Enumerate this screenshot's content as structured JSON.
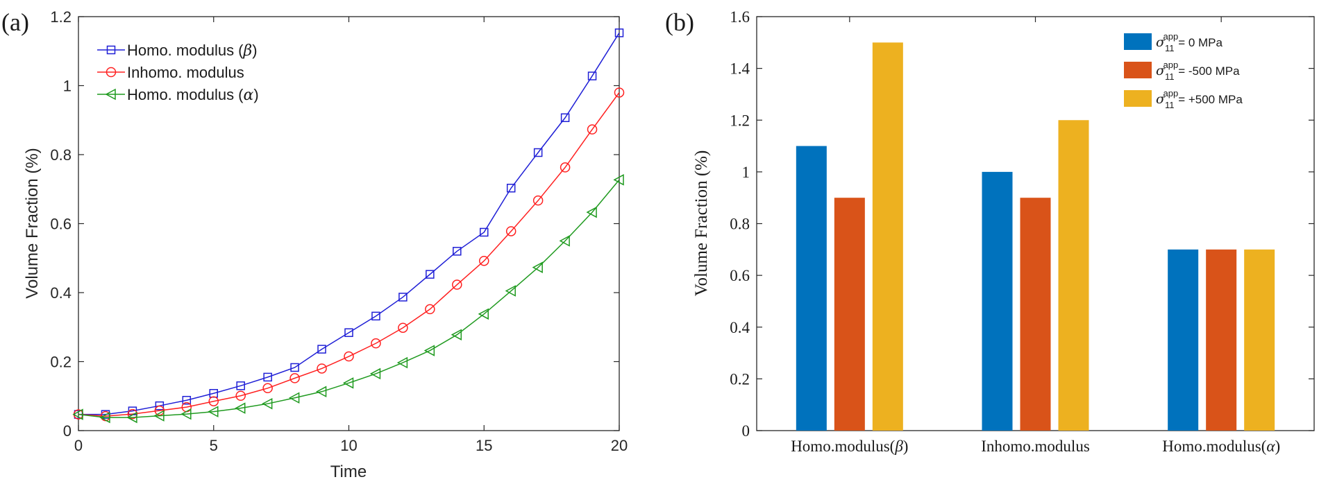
{
  "chart_data": [
    {
      "panel_label": "(a)",
      "type": "line",
      "title": "",
      "xlabel": "Time",
      "ylabel": "Volume Fraction (%)",
      "xlim": [
        0,
        20
      ],
      "ylim": [
        0,
        1.2
      ],
      "xticks": [
        0,
        5,
        10,
        15,
        20
      ],
      "xtick_labels": [
        "0",
        "5",
        "10",
        "15",
        "20"
      ],
      "yticks": [
        0,
        0.2,
        0.4,
        0.6,
        0.8,
        1.0,
        1.2
      ],
      "ytick_labels": [
        "0",
        "0.2",
        "0.4",
        "0.6",
        "0.8",
        "1",
        "1.2"
      ],
      "legend_position": "top-left",
      "x": [
        0,
        1,
        2,
        3,
        4,
        5,
        6,
        7,
        8,
        9,
        10,
        11,
        12,
        13,
        14,
        15,
        16,
        17,
        18,
        19,
        20
      ],
      "series": [
        {
          "name": "Homo. modulus (β)",
          "legend_prefix": "Homo. modulus (",
          "legend_symbol": "β",
          "legend_suffix": ")",
          "color": "#1f1fd6",
          "marker": "square",
          "values": [
            0.047,
            0.047,
            0.057,
            0.072,
            0.088,
            0.108,
            0.13,
            0.155,
            0.183,
            0.236,
            0.284,
            0.332,
            0.387,
            0.453,
            0.52,
            0.575,
            0.703,
            0.806,
            0.907,
            1.028,
            1.153
          ]
        },
        {
          "name": "Inhomo. modulus",
          "legend_prefix": "Inhomo. modulus",
          "legend_symbol": "",
          "legend_suffix": "",
          "color": "#ff2020",
          "marker": "circle",
          "values": [
            0.047,
            0.042,
            0.048,
            0.058,
            0.068,
            0.085,
            0.101,
            0.123,
            0.152,
            0.18,
            0.215,
            0.253,
            0.298,
            0.352,
            0.423,
            0.492,
            0.578,
            0.667,
            0.763,
            0.873,
            0.98
          ]
        },
        {
          "name": "Homo. modulus (α)",
          "legend_prefix": "Homo. modulus (",
          "legend_symbol": "α",
          "legend_suffix": ")",
          "color": "#1f9a1f",
          "marker": "triangle-left",
          "values": [
            0.047,
            0.038,
            0.038,
            0.043,
            0.048,
            0.055,
            0.065,
            0.078,
            0.095,
            0.113,
            0.138,
            0.165,
            0.197,
            0.232,
            0.278,
            0.338,
            0.405,
            0.473,
            0.55,
            0.633,
            0.727
          ]
        }
      ]
    },
    {
      "panel_label": "(b)",
      "type": "bar",
      "title": "",
      "xlabel": "",
      "ylabel": "Volume Fraction (%)",
      "ylim": [
        0,
        1.6
      ],
      "yticks": [
        0,
        0.2,
        0.4,
        0.6,
        0.8,
        1.0,
        1.2,
        1.4,
        1.6
      ],
      "ytick_labels": [
        "0",
        "0.2",
        "0.4",
        "0.6",
        "0.8",
        "1",
        "1.2",
        "1.4",
        "1.6"
      ],
      "legend_position": "top-right",
      "categories": [
        {
          "text": "Homo.modulus(",
          "symbol": "β",
          "suffix": ")"
        },
        {
          "text": "Inhomo.modulus",
          "symbol": "",
          "suffix": ""
        },
        {
          "text": "Homo.modulus(",
          "symbol": "α",
          "suffix": ")"
        }
      ],
      "series": [
        {
          "name": "σ11app = 0 MPa",
          "sym": "σ",
          "sub": "11",
          "sup": "app",
          "rest": "= 0 MPa",
          "color": "#0072bd",
          "values": [
            1.1,
            1.0,
            0.7
          ]
        },
        {
          "name": "σ11app= -500 MPa",
          "sym": "σ",
          "sub": "11",
          "sup": "app",
          "rest": "= -500 MPa",
          "color": "#d95319",
          "values": [
            0.9,
            0.9,
            0.7
          ]
        },
        {
          "name": "σ11app= +500 MPa",
          "sym": "σ",
          "sub": "11",
          "sup": "app",
          "rest": "= +500 MPa",
          "color": "#edb120",
          "values": [
            1.5,
            1.2,
            0.7
          ]
        }
      ]
    }
  ]
}
